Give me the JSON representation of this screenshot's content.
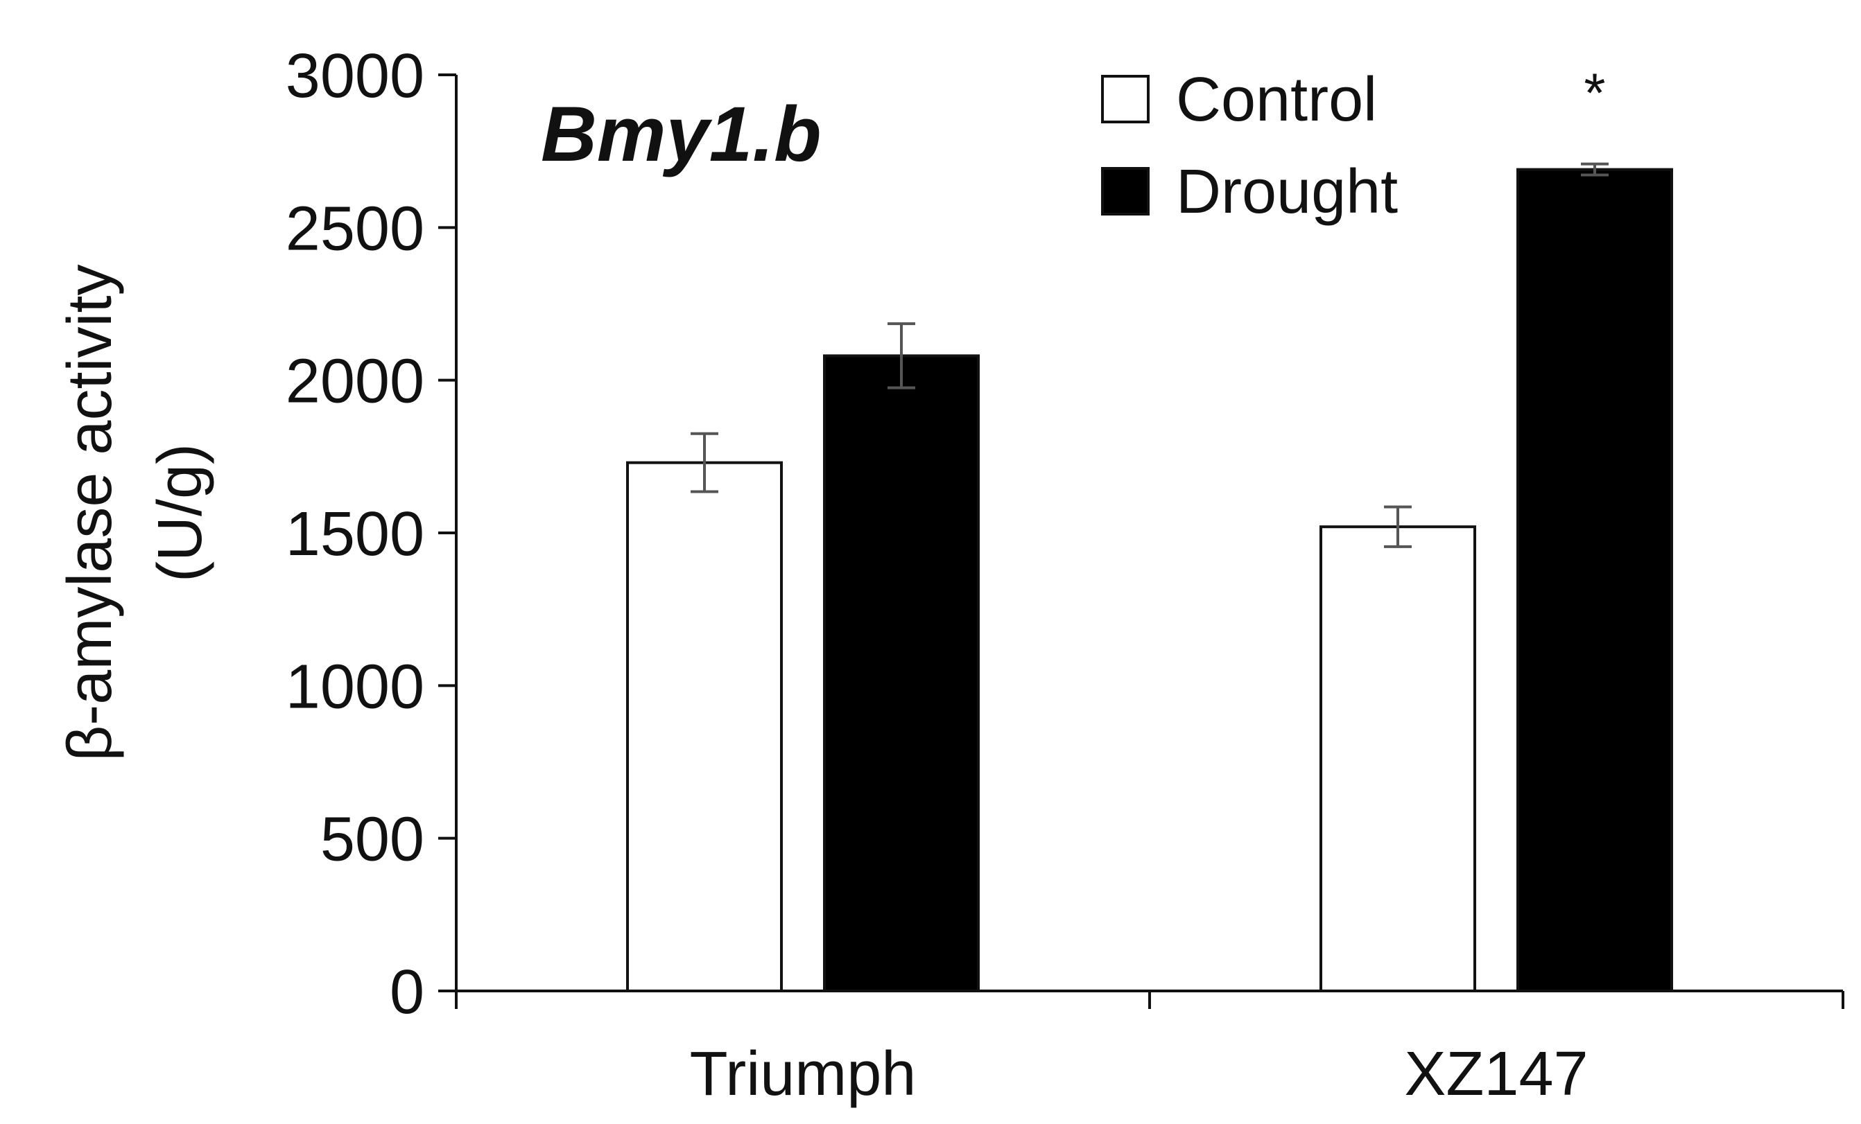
{
  "chart_data": {
    "type": "bar",
    "title": "Bmy1.b",
    "ylabel_line1": "β-amylase activity",
    "ylabel_line2": "(U/g)",
    "xlabel": "",
    "ylim": [
      0,
      3000
    ],
    "yticks": [
      0,
      500,
      1000,
      1500,
      2000,
      2500,
      3000
    ],
    "categories": [
      "Triumph",
      "XZ147"
    ],
    "series": [
      {
        "name": "Control",
        "color": "#ffffff",
        "values": [
          1730,
          1520
        ],
        "errors": [
          95,
          65
        ]
      },
      {
        "name": "Drought",
        "color": "#000000",
        "values": [
          2080,
          2690
        ],
        "errors": [
          105,
          18
        ]
      }
    ],
    "significance": [
      {
        "category": "XZ147",
        "series": "Drought",
        "label": "*"
      }
    ],
    "legend_position": "top-right"
  }
}
